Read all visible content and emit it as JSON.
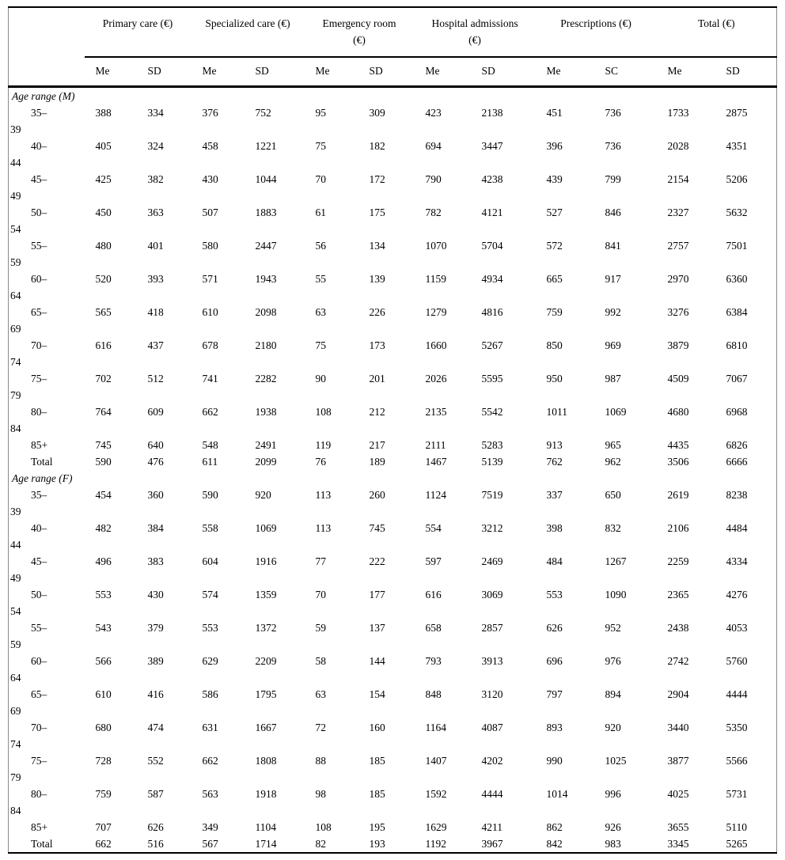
{
  "table": {
    "stub_header": "",
    "column_groups": [
      {
        "label": "Primary care (€)"
      },
      {
        "label": "Specialized care (€)"
      },
      {
        "label": "Emergency room\n(€)"
      },
      {
        "label": "Hospital admissions\n(€)"
      },
      {
        "label": "Prescriptions (€)"
      },
      {
        "label": "Total (€)"
      }
    ],
    "sub_headers": [
      "Me",
      "SD",
      "Me",
      "SD",
      "Me",
      "SD",
      "Me",
      "SD",
      "Me",
      "SC",
      "Me",
      "SD"
    ],
    "sections": [
      {
        "label": "Age range (M)",
        "rows": [
          {
            "age": "35–39",
            "values": [
              388,
              334,
              376,
              752,
              95,
              309,
              423,
              2138,
              451,
              736,
              1733,
              2875
            ]
          },
          {
            "age": "40–44",
            "values": [
              405,
              324,
              458,
              1221,
              75,
              182,
              694,
              3447,
              396,
              736,
              2028,
              4351
            ]
          },
          {
            "age": "45–49",
            "values": [
              425,
              382,
              430,
              1044,
              70,
              172,
              790,
              4238,
              439,
              799,
              2154,
              5206
            ]
          },
          {
            "age": "50–54",
            "values": [
              450,
              363,
              507,
              1883,
              61,
              175,
              782,
              4121,
              527,
              846,
              2327,
              5632
            ]
          },
          {
            "age": "55–59",
            "values": [
              480,
              401,
              580,
              2447,
              56,
              134,
              1070,
              5704,
              572,
              841,
              2757,
              7501
            ]
          },
          {
            "age": "60–64",
            "values": [
              520,
              393,
              571,
              1943,
              55,
              139,
              1159,
              4934,
              665,
              917,
              2970,
              6360
            ]
          },
          {
            "age": "65–69",
            "values": [
              565,
              418,
              610,
              2098,
              63,
              226,
              1279,
              4816,
              759,
              992,
              3276,
              6384
            ]
          },
          {
            "age": "70–74",
            "values": [
              616,
              437,
              678,
              2180,
              75,
              173,
              1660,
              5267,
              850,
              969,
              3879,
              6810
            ]
          },
          {
            "age": "75–79",
            "values": [
              702,
              512,
              741,
              2282,
              90,
              201,
              2026,
              5595,
              950,
              987,
              4509,
              7067
            ]
          },
          {
            "age": "80–84",
            "values": [
              764,
              609,
              662,
              1938,
              108,
              212,
              2135,
              5542,
              1011,
              1069,
              4680,
              6968
            ]
          },
          {
            "age": "85+",
            "values": [
              745,
              640,
              548,
              2491,
              119,
              217,
              2111,
              5283,
              913,
              965,
              4435,
              6826
            ]
          },
          {
            "age": "Total",
            "values": [
              590,
              476,
              611,
              2099,
              76,
              189,
              1467,
              5139,
              762,
              962,
              3506,
              6666
            ]
          }
        ]
      },
      {
        "label": "Age range (F)",
        "rows": [
          {
            "age": "35–39",
            "values": [
              454,
              360,
              590,
              920,
              113,
              260,
              1124,
              7519,
              337,
              650,
              2619,
              8238
            ]
          },
          {
            "age": "40–44",
            "values": [
              482,
              384,
              558,
              1069,
              113,
              745,
              554,
              3212,
              398,
              832,
              2106,
              4484
            ]
          },
          {
            "age": "45–49",
            "values": [
              496,
              383,
              604,
              1916,
              77,
              222,
              597,
              2469,
              484,
              1267,
              2259,
              4334
            ]
          },
          {
            "age": "50–54",
            "values": [
              553,
              430,
              574,
              1359,
              70,
              177,
              616,
              3069,
              553,
              1090,
              2365,
              4276
            ]
          },
          {
            "age": "55–59",
            "values": [
              543,
              379,
              553,
              1372,
              59,
              137,
              658,
              2857,
              626,
              952,
              2438,
              4053
            ]
          },
          {
            "age": "60–64",
            "values": [
              566,
              389,
              629,
              2209,
              58,
              144,
              793,
              3913,
              696,
              976,
              2742,
              5760
            ]
          },
          {
            "age": "65–69",
            "values": [
              610,
              416,
              586,
              1795,
              63,
              154,
              848,
              3120,
              797,
              894,
              2904,
              4444
            ]
          },
          {
            "age": "70–74",
            "values": [
              680,
              474,
              631,
              1667,
              72,
              160,
              1164,
              4087,
              893,
              920,
              3440,
              5350
            ]
          },
          {
            "age": "75–79",
            "values": [
              728,
              552,
              662,
              1808,
              88,
              185,
              1407,
              4202,
              990,
              1025,
              3877,
              5566
            ]
          },
          {
            "age": "80–84",
            "values": [
              759,
              587,
              563,
              1918,
              98,
              185,
              1592,
              4444,
              1014,
              996,
              4025,
              5731
            ]
          },
          {
            "age": "85+",
            "values": [
              707,
              626,
              349,
              1104,
              108,
              195,
              1629,
              4211,
              862,
              926,
              3655,
              5110
            ]
          },
          {
            "age": "Total",
            "values": [
              662,
              516,
              567,
              1714,
              82,
              193,
              1192,
              3967,
              842,
              983,
              3345,
              5265
            ]
          }
        ]
      }
    ],
    "colors": {
      "text": "#000000",
      "rule": "#000000",
      "side_rule": "#8a8a8a",
      "background": "#ffffff"
    }
  }
}
